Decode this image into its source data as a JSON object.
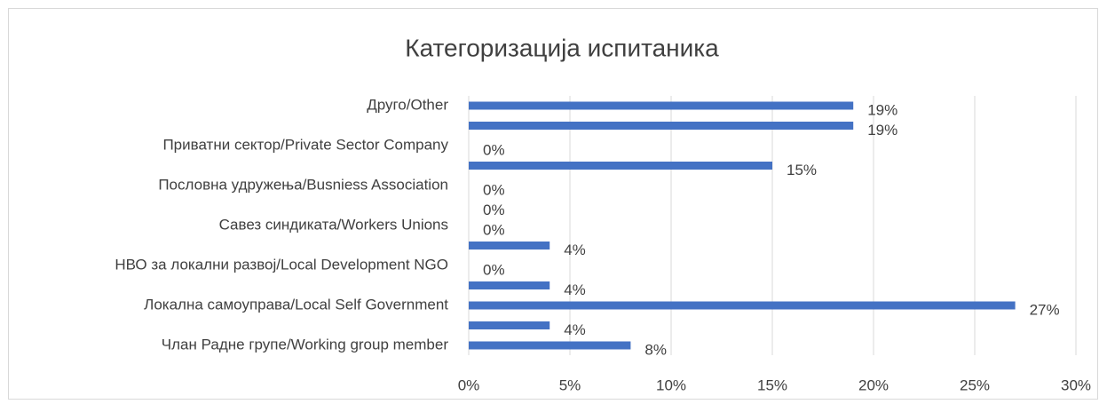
{
  "chart_data": {
    "type": "barh",
    "title": "Категоризација испитаника",
    "categories": [
      "Друго/Other",
      null,
      "Приватни сектор/Private Sector Company",
      null,
      "Пословна удружења/Busniess Association",
      null,
      "Савез синдиката/Workers Unions",
      null,
      "НВО за локални развој/Local Development NGO",
      null,
      "Локална самоуправа/Local Self Government",
      null,
      "Члан Радне групе/Working group member"
    ],
    "values": [
      19,
      19,
      0,
      15,
      0,
      0,
      0,
      4,
      0,
      4,
      27,
      4,
      8
    ],
    "value_labels": [
      "19%",
      "19%",
      "0%",
      "15%",
      "0%",
      "0%",
      "0%",
      "4%",
      "0%",
      "4%",
      "27%",
      "4%",
      "8%"
    ],
    "color": "#4472c4",
    "xlim": [
      0,
      30
    ],
    "xticks": [
      {
        "value": 0,
        "label": "0%"
      },
      {
        "value": 5,
        "label": "5%"
      },
      {
        "value": 10,
        "label": "10%"
      },
      {
        "value": 15,
        "label": "15%"
      },
      {
        "value": 20,
        "label": "20%"
      },
      {
        "value": 25,
        "label": "25%"
      },
      {
        "value": 30,
        "label": "30%"
      }
    ],
    "grid": true
  }
}
